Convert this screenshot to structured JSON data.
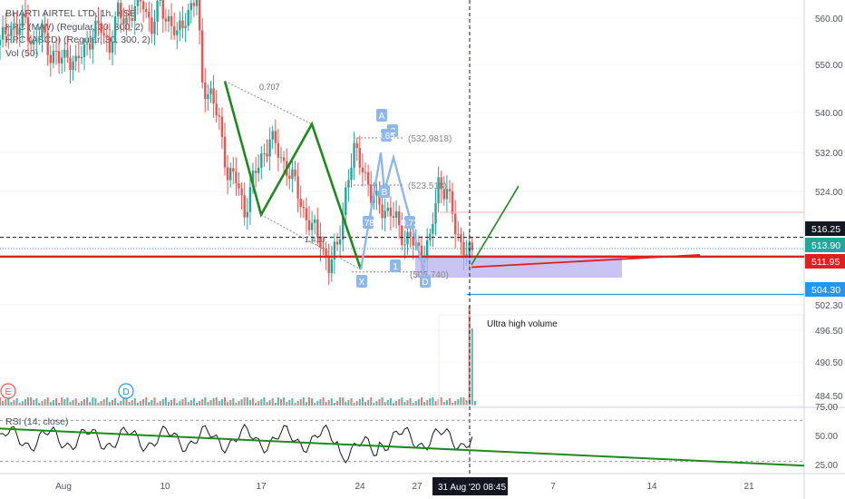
{
  "legend": {
    "symbol": "BHARTI AIRTEL LTD, 1h, NSE",
    "hpc_mw": "HPC (M/W) (Regular, 30, 300, 2)",
    "hpc_abcd": "HPC (ABCD) (Regular, 30, 300, 2)",
    "vol": "Vol (50)"
  },
  "colors": {
    "up": "#26a69a",
    "down": "#ef5350",
    "pattern_green": "#1e8a1e",
    "pattern_blue": "#8fb8ea",
    "support_red": "#e02020",
    "zone_fill": "#b7b0f0",
    "level_blue": "#2196f3"
  },
  "chart_data": {
    "type": "candlestick",
    "price_axis": {
      "ticks": [
        "560.00",
        "550.00",
        "540.00",
        "532.00",
        "524.00",
        "502.30",
        "496.50",
        "490.50",
        "484.50"
      ],
      "ylim": [
        481,
        566
      ]
    },
    "x_axis": {
      "ticks": [
        "Aug",
        "10",
        "17",
        "24",
        "27",
        "7",
        "14",
        "21"
      ],
      "current_time_label": "31 Aug '20",
      "current_time_clock": "08:45"
    },
    "price_tags": [
      {
        "label": "516.25",
        "kind": "crosshair"
      },
      {
        "label": "513.90",
        "kind": "last"
      },
      {
        "label": "511.95",
        "kind": "support"
      },
      {
        "label": "504.30",
        "kind": "target"
      }
    ],
    "candle_path": [
      [
        0,
        556.5
      ],
      [
        3,
        561
      ],
      [
        6,
        559
      ],
      [
        9,
        562
      ],
      [
        12,
        556
      ],
      [
        15,
        559.5
      ],
      [
        18,
        555
      ],
      [
        21,
        553
      ],
      [
        24,
        555
      ],
      [
        27,
        552
      ],
      [
        30,
        556
      ],
      [
        33,
        559
      ],
      [
        36,
        560
      ],
      [
        39,
        556.5
      ],
      [
        42,
        563
      ],
      [
        45,
        562
      ],
      [
        48,
        564
      ],
      [
        51,
        566
      ],
      [
        54,
        560
      ],
      [
        57,
        565
      ],
      [
        60,
        562
      ],
      [
        63,
        558
      ],
      [
        66,
        563
      ],
      [
        70,
        566
      ],
      [
        72,
        549
      ],
      [
        75,
        546
      ],
      [
        78,
        540
      ],
      [
        81,
        530
      ],
      [
        84,
        528
      ],
      [
        87,
        522
      ],
      [
        90,
        528
      ],
      [
        93,
        533
      ],
      [
        96,
        537
      ],
      [
        99,
        534
      ],
      [
        102,
        531
      ],
      [
        105,
        527
      ],
      [
        108,
        522
      ],
      [
        111,
        518
      ],
      [
        114,
        516
      ],
      [
        117,
        510
      ],
      [
        120,
        514
      ],
      [
        123,
        526
      ],
      [
        126,
        534
      ],
      [
        129,
        532
      ],
      [
        132,
        524
      ],
      [
        135,
        524
      ],
      [
        138,
        521
      ],
      [
        141,
        520
      ],
      [
        144,
        516
      ],
      [
        147,
        515
      ],
      [
        150,
        513
      ],
      [
        153,
        515
      ],
      [
        156,
        528
      ],
      [
        159,
        526
      ],
      [
        162,
        518
      ],
      [
        165,
        514
      ],
      [
        168,
        512
      ]
    ],
    "pattern_xabcd": {
      "points": [
        [
          77,
          549
        ],
        [
          88,
          521
        ],
        [
          103,
          540
        ],
        [
          117,
          510
        ],
        [
          133,
          494
        ]
      ],
      "fib_top": "0.707",
      "fib_bottom": "1.410"
    },
    "pattern_abcd_labels": {
      "A": "A",
      "B": "B",
      "C": "C",
      "D": "D",
      "X": "X"
    },
    "pattern_annotations": [
      "(532.9818)",
      "(523.518)",
      "(505.740)",
      "0.786",
      "0.73",
      "0.65",
      "1"
    ],
    "ultra_high_volume_label": "Ultra high volume",
    "projection_line": [
      [
        168,
        512
      ],
      [
        188,
        535
      ]
    ],
    "support_line": {
      "price": 512.2,
      "label": "511.95"
    },
    "volume": {
      "bars_label": "Vol (50)",
      "spike_index": 167
    },
    "event_markers": [
      {
        "label": "E",
        "x": 5
      },
      {
        "label": "D",
        "x": 45
      }
    ],
    "rsi": {
      "label": "RSI (14, close)",
      "ticks": [
        "75.00",
        "50.00",
        "25.00"
      ],
      "levels": [
        70,
        30
      ],
      "trend_line": [
        [
          0,
          62
        ],
        [
          290,
          22
        ]
      ]
    }
  }
}
